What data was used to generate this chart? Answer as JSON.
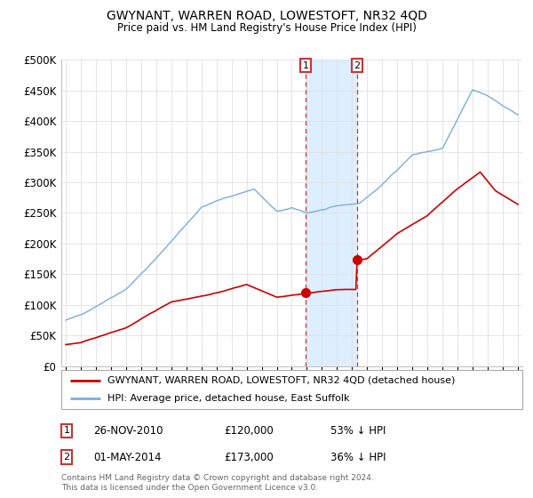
{
  "title": "GWYNANT, WARREN ROAD, LOWESTOFT, NR32 4QD",
  "subtitle": "Price paid vs. HM Land Registry's House Price Index (HPI)",
  "legend_line1": "GWYNANT, WARREN ROAD, LOWESTOFT, NR32 4QD (detached house)",
  "legend_line2": "HPI: Average price, detached house, East Suffolk",
  "sale1_date": "26-NOV-2010",
  "sale1_price": 120000,
  "sale1_label": "53% ↓ HPI",
  "sale2_date": "01-MAY-2014",
  "sale2_price": 173000,
  "sale2_label": "36% ↓ HPI",
  "footer": "Contains HM Land Registry data © Crown copyright and database right 2024.\nThis data is licensed under the Open Government Licence v3.0.",
  "hpi_color": "#7aaddc",
  "price_color": "#cc0000",
  "vline_color": "#cc3333",
  "shade_color": "#ddeeff",
  "grid_color": "#e0e0e0",
  "ylim": [
    0,
    500000
  ],
  "yticks": [
    0,
    50000,
    100000,
    150000,
    200000,
    250000,
    300000,
    350000,
    400000,
    450000,
    500000
  ],
  "xlim_left": 1994.7,
  "xlim_right": 2025.3
}
